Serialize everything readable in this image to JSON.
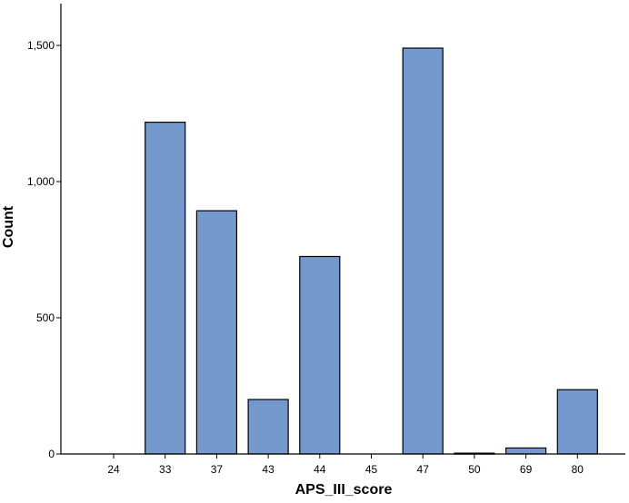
{
  "chart_data": {
    "type": "bar",
    "title": "",
    "xlabel": "APS_III_score",
    "ylabel": "Count",
    "categories": [
      "24",
      "33",
      "37",
      "43",
      "44",
      "45",
      "47",
      "50",
      "69",
      "80"
    ],
    "values": [
      0,
      1218,
      893,
      200,
      725,
      0,
      1490,
      3,
      22,
      236
    ],
    "ylim": [
      0,
      1500
    ],
    "yticks": [
      0,
      500,
      1000,
      1500
    ],
    "ytick_labels": [
      "0",
      "500",
      "1,000",
      "1,500"
    ],
    "grid": false,
    "bar_color": "#7399cd",
    "bar_edge_color": "#000000"
  }
}
